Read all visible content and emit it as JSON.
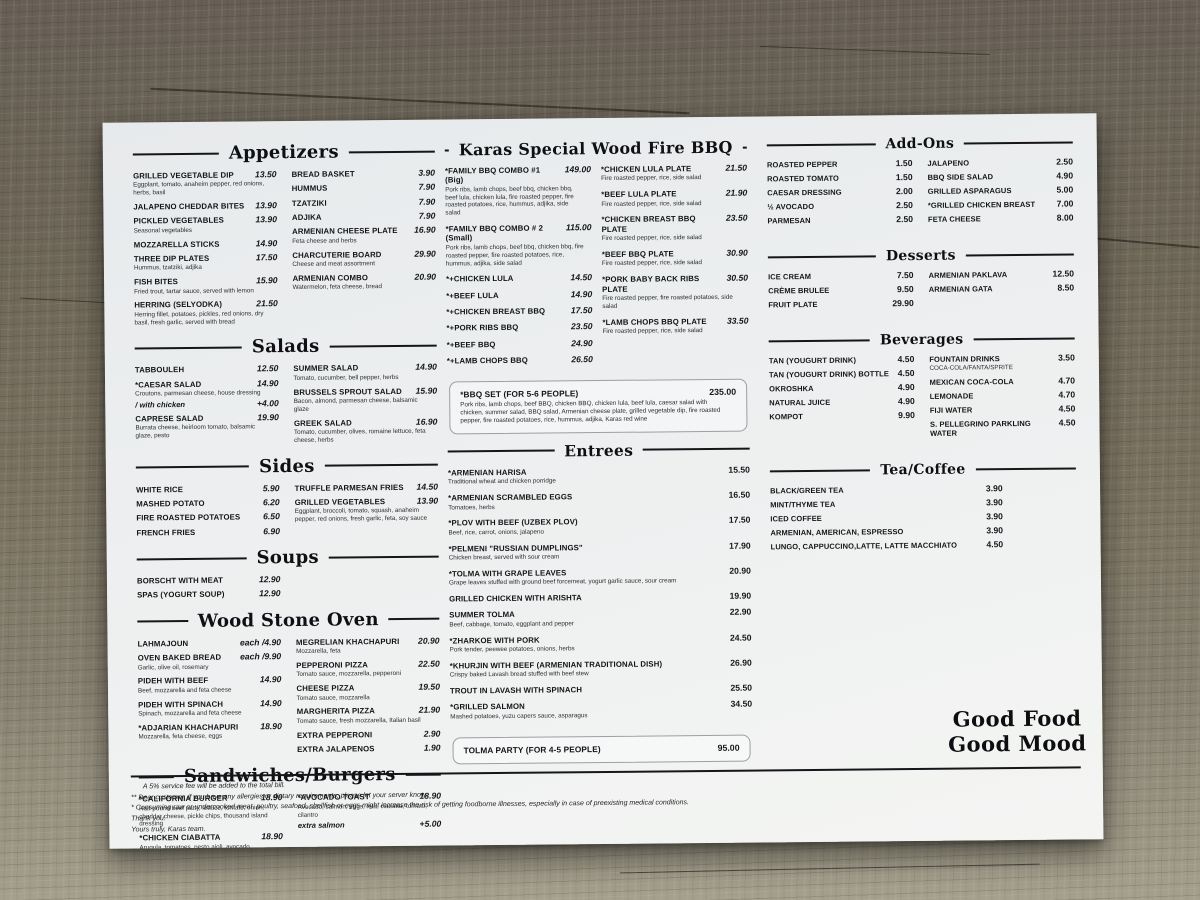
{
  "slogan": {
    "line1": "Good Food",
    "line2": "Good Mood"
  },
  "boxes": {
    "bbq_set": {
      "name": "*BBQ SET  (FOR 5-6 PEOPLE)",
      "price": "235.00",
      "desc": "Pork ribs, lamb chops, beef BBQ, chicken BBQ, chicken lula, beef lula, caesar salad with chicken, summer salad, BBQ salad, Armenian cheese plate, grilled vegetable dip, fire roasted pepper, fire roasted potatoes, rice, hummus, adjika, Karas red wine"
    },
    "tolma_party": {
      "name": "TOLMA PARTY  (FOR 4-5 PEOPLE)",
      "price": "95.00"
    }
  },
  "sections": {
    "appetizers": {
      "title": "Appetizers",
      "columns": [
        [
          {
            "name": "GRILLED VEGETABLE DIP",
            "price": "13.50",
            "desc": "Eggplant, tomato, anaheim pepper, red onions, herbs, basil"
          },
          {
            "name": "JALAPENO CHEDDAR BITES",
            "price": "13.90"
          },
          {
            "name": "PICKLED VEGETABLES",
            "price": "13.90",
            "desc": "Seasonal vegetables"
          },
          {
            "name": "MOZZARELLA STICKS",
            "price": "14.90"
          },
          {
            "name": "THREE DIP PLATES",
            "price": "17.50",
            "desc": "Hummus, tzatziki, adjika"
          },
          {
            "name": "FISH BITES",
            "price": "15.90",
            "desc": "Fried trout, tartar sauce, served with lemon"
          },
          {
            "name": "HERRING (SELYODKA)",
            "price": "21.50",
            "desc": "Herring fillet, potatoes, pickles, red onions, dry basil, fresh garlic, served with bread"
          }
        ],
        [
          {
            "name": "BREAD BASKET",
            "price": "3.90"
          },
          {
            "name": "HUMMUS",
            "price": "7.90"
          },
          {
            "name": "TZATZIKI",
            "price": "7.90"
          },
          {
            "name": "ADJIKA",
            "price": "7.90"
          },
          {
            "name": "ARMENIAN CHEESE PLATE",
            "price": "16.90",
            "desc": "Feta cheese and herbs"
          },
          {
            "name": "CHARCUTERIE BOARD",
            "price": "29.90",
            "desc": "Cheese and meat assortment"
          },
          {
            "name": "ARMENIAN COMBO",
            "price": "20.90",
            "desc": "Watermelon, feta cheese, bread"
          }
        ]
      ]
    },
    "salads": {
      "title": "Salads",
      "columns": [
        [
          {
            "name": "TABBOULEH",
            "price": "12.50"
          },
          {
            "name": "*CAESAR SALAD",
            "price": "14.90",
            "desc": "Croutons, parmesan cheese, house dressing",
            "sub": {
              "name": "/ with chicken",
              "price": "+4.00"
            }
          },
          {
            "name": "CAPRESE SALAD",
            "price": "19.90",
            "desc": "Burrata cheese, heirloom tomato, balsamic glaze, pesto"
          }
        ],
        [
          {
            "name": "SUMMER SALAD",
            "price": "14.90",
            "desc": "Tomato, cucumber, bell pepper, herbs"
          },
          {
            "name": "BRUSSELS SPROUT SALAD",
            "price": "15.90",
            "desc": "Bacon, almond, parmesan cheese, balsamic glaze"
          },
          {
            "name": "GREEK SALAD",
            "price": "16.90",
            "desc": "Tomato, cucumber, olives, romaine lettuce, feta cheese, herbs"
          }
        ]
      ]
    },
    "sides": {
      "title": "Sides",
      "columns": [
        [
          {
            "name": "WHITE RICE",
            "price": "5.90"
          },
          {
            "name": "MASHED POTATO",
            "price": "6.20"
          },
          {
            "name": "FIRE ROASTED POTATOES",
            "price": "6.50"
          },
          {
            "name": "FRENCH FRIES",
            "price": "6.90"
          }
        ],
        [
          {
            "name": "TRUFFLE PARMESAN FRIES",
            "price": "14.50"
          },
          {
            "name": "GRILLED VEGETABLES",
            "price": "13.90",
            "desc": "Eggplant, broccoli, tomato, squash, anaheim pepper, red onions, fresh garlic, feta, soy sauce"
          }
        ]
      ]
    },
    "soups": {
      "title": "Soups",
      "columns": [
        [
          {
            "name": "BORSCHT WITH MEAT",
            "price": "12.90"
          },
          {
            "name": "SPAS (YOGURT SOUP)",
            "price": "12.90"
          }
        ],
        []
      ]
    },
    "wood_stone_oven": {
      "title": "Wood Stone Oven",
      "columns": [
        [
          {
            "name": "LAHMAJOUN",
            "price": "each /4.90"
          },
          {
            "name": "OVEN BAKED BREAD",
            "price": "each /9.90",
            "desc": "Garlic, olive oil, rosemary"
          },
          {
            "name": "PIDEH WITH BEEF",
            "price": "14.90",
            "desc": "Beef, mozzarella and feta cheese"
          },
          {
            "name": "PIDEH WITH SPINACH",
            "price": "14.90",
            "desc": "Spinach, mozzarella and feta cheese"
          },
          {
            "name": "*ADJARIAN KHACHAPURI",
            "price": "18.90",
            "desc": "Mozzarella, feta cheese, eggs"
          }
        ],
        [
          {
            "name": "MEGRELIAN KHACHAPURI",
            "price": "20.90",
            "desc": "Mozzarella, feta"
          },
          {
            "name": "PEPPERONI PIZZA",
            "price": "22.50",
            "desc": "Tomato sauce, mozzarella, pepperoni"
          },
          {
            "name": "CHEESE PIZZA",
            "price": "19.50",
            "desc": "Tomato sauce, mozzarella"
          },
          {
            "name": "MARGHERITA PIZZA",
            "price": "21.90",
            "desc": "Tomato sauce, fresh mozzarella, Italian basil"
          },
          {
            "name": "EXTRA PEPPERONI",
            "price": "2.90"
          },
          {
            "name": "EXTRA JALAPENOS",
            "price": "1.90"
          }
        ]
      ]
    },
    "sandwiches_burgers": {
      "title": "Sandwiches/Burgers",
      "columns": [
        [
          {
            "name": "*CALIFORNIA BURGER",
            "price": "18.90",
            "desc": "Half-pound beef patty, lettuce, tomato, onion, cheddar cheese, pickle chips, thousand island dressing"
          },
          {
            "name": "*CHICKEN CIABATTA",
            "price": "18.90",
            "desc": "Arugula, tomatoes, pesto aioli, avocado"
          }
        ],
        [
          {
            "name": "*AVOCADO TOAST",
            "price": "18.90",
            "desc": "Avocado, salmon, eggs, feta, ciabatta, tomato, cilantro",
            "sub": {
              "name": "extra salmon",
              "price": "+5.00"
            }
          }
        ]
      ]
    },
    "bbq": {
      "title": "Karas Special Wood Fire BBQ",
      "columns": [
        [
          {
            "name": "*FAMILY BBQ COMBO #1 (Big)",
            "price": "149.00",
            "desc": "Pork ribs, lamb chops, beef bbq, chicken bbq, beef lula, chicken lula, fire roasted pepper, fire roasted potatoes, rice, hummus, adjika, side salad"
          },
          {
            "name": "*FAMILY BBQ COMBO # 2 (Small)",
            "price": "115.00",
            "desc": "Pork ribs, lamb chops, beef bbq, chicken bbq, fire roasted pepper, fire roasted potatoes, rice, hummus, adjika, side salad"
          },
          {
            "name": "*+CHICKEN LULA",
            "price": "14.50"
          },
          {
            "name": "*+BEEF LULA",
            "price": "14.90"
          },
          {
            "name": "*+CHICKEN BREAST BBQ",
            "price": "17.50"
          },
          {
            "name": "*+PORK RIBS BBQ",
            "price": "23.50"
          },
          {
            "name": "*+BEEF BBQ",
            "price": "24.90"
          },
          {
            "name": "*+LAMB CHOPS BBQ",
            "price": "26.50"
          }
        ],
        [
          {
            "name": "*CHICKEN LULA PLATE",
            "price": "21.50",
            "desc": "Fire roasted pepper, rice, side salad"
          },
          {
            "name": "*BEEF LULA PLATE",
            "price": "21.90",
            "desc": "Fire roasted pepper, rice, side salad"
          },
          {
            "name": "*CHICKEN BREAST BBQ PLATE",
            "price": "23.50",
            "desc": "Fire roasted pepper, rice, side salad"
          },
          {
            "name": "*BEEF BBQ PLATE",
            "price": "30.90",
            "desc": "Fire roasted pepper, rice, side salad"
          },
          {
            "name": "*PORK BABY BACK RIBS PLATE",
            "price": "30.50",
            "desc": "Fire roasted pepper, fire roasted potatoes, side salad"
          },
          {
            "name": "*LAMB CHOPS BBQ PLATE",
            "price": "33.50",
            "desc": "Fire roasted pepper, rice, side salad"
          }
        ]
      ]
    },
    "entrees": {
      "title": "Entrees",
      "columns": [
        [
          {
            "name": "*ARMENIAN HARISA",
            "price": "15.50",
            "desc": "Traditional wheat and chicken porridge"
          },
          {
            "name": "*ARMENIAN SCRAMBLED EGGS",
            "price": "16.50",
            "desc": "Tomatoes, herbs"
          },
          {
            "name": "*PLOV WITH BEEF (UZBEX PLOV)",
            "price": "17.50",
            "desc": "Beef, rice, carrot, onions, jalapeno"
          },
          {
            "name": "*PELMENI \"RUSSIAN DUMPLINGS\"",
            "price": "17.90",
            "desc": "Chicken breast, served with sour cream"
          },
          {
            "name": "*TOLMA WITH GRAPE LEAVES",
            "price": "20.90",
            "desc": "Grape leaves stuffed with ground beef forcemeat, yogurt garlic sauce, sour cream"
          },
          {
            "name": "GRILLED CHICKEN WITH ARISHTA",
            "price": "19.90"
          },
          {
            "name": "SUMMER TOLMA",
            "price": "22.90",
            "desc": "Beef, cabbage, tomato, eggplant and pepper"
          },
          {
            "name": "*ZHARKOE WITH PORK",
            "price": "24.50",
            "desc": "Pork tender, peewee potatoes, onions, herbs"
          },
          {
            "name": "*KHURJIN WITH BEEF (ARMENIAN TRADITIONAL DISH)",
            "price": "26.90",
            "desc": "Crispy baked Lavash bread stuffed with beef stew"
          },
          {
            "name": "TROUT IN LAVASH WITH SPINACH",
            "price": "25.50"
          },
          {
            "name": "*GRILLED SALMON",
            "price": "34.50",
            "desc": "Mashed potatoes, yuzu capers sauce, asparagus"
          }
        ]
      ]
    },
    "add_ons": {
      "title": "Add-Ons",
      "columns": [
        [
          {
            "name": "ROASTED PEPPER",
            "price": "1.50"
          },
          {
            "name": "ROASTED TOMATO",
            "price": "1.50"
          },
          {
            "name": "CAESAR DRESSING",
            "price": "2.00"
          },
          {
            "name": "½  AVOCADO",
            "price": "2.50"
          },
          {
            "name": "PARMESAN",
            "price": "2.50"
          }
        ],
        [
          {
            "name": "JALAPENO",
            "price": "2.50"
          },
          {
            "name": "BBQ SIDE SALAD",
            "price": "4.90"
          },
          {
            "name": "GRILLED ASPARAGUS",
            "price": "5.00"
          },
          {
            "name": "*GRILLED CHICKEN BREAST",
            "price": "7.00"
          },
          {
            "name": "FETA CHEESE",
            "price": "8.00"
          }
        ]
      ]
    },
    "desserts": {
      "title": "Desserts",
      "columns": [
        [
          {
            "name": "ICE CREAM",
            "price": "7.50"
          },
          {
            "name": "CRÈME BRULEE",
            "price": "9.50"
          },
          {
            "name": "FRUIT PLATE",
            "price": "29.90"
          }
        ],
        [
          {
            "name": "ARMENIAN PAKLAVA",
            "price": "12.50"
          },
          {
            "name": "ARMENIAN GATA",
            "price": "8.50"
          }
        ]
      ]
    },
    "beverages": {
      "title": "Beverages",
      "columns": [
        [
          {
            "name": "TAN (YOUGURT DRINK)",
            "price": "4.50"
          },
          {
            "name": "TAN (YOUGURT DRINK) BOTTLE",
            "price": "4.50"
          },
          {
            "name": "OKROSHKA",
            "price": "4.90"
          },
          {
            "name": "NATURAL JUICE",
            "price": "4.90"
          },
          {
            "name": "KOMPOT",
            "price": "9.90"
          }
        ],
        [
          {
            "name": "FOUNTAIN DRINKS",
            "price": "3.50",
            "desc": "COCA-COLA/FANTA/SPRITE"
          },
          {
            "name": "MEXICAN COCA-COLA",
            "price": "4.70"
          },
          {
            "name": "LEMONADE",
            "price": "4.70"
          },
          {
            "name": "FIJI WATER",
            "price": "4.50"
          },
          {
            "name": "S. PELLEGRINO PARKLING WATER",
            "price": "4.50"
          }
        ]
      ]
    },
    "tea_coffee": {
      "title": "Tea/Coffee",
      "columns": [
        [
          {
            "name": "BLACK/GREEN TEA",
            "price": "3.90"
          },
          {
            "name": "MINT/THYME TEA",
            "price": "3.90"
          },
          {
            "name": "ICED COFFEE",
            "price": "3.90"
          },
          {
            "name": "ARMENIAN, AMERICAN, ESPRESSO",
            "price": "3.90"
          },
          {
            "name": "LUNGO, CAPPUCCINO,LATTE, LATTE MACCHIATO",
            "price": "4.50"
          }
        ]
      ]
    }
  },
  "footer": {
    "notes": [
      "A 5% service fee will be added to the total bill.",
      "** Dear customer, if you have any allergies or dietary requirements, please let your server know.",
      "*  Consuming raw or undercooked meat, poultry, seafood, shellfish or eggs might increase the risk of getting foodborne illnesses, especially in case of preexisting medical conditions.",
      "Thank you.",
      "Yours truly, Karas team."
    ]
  }
}
